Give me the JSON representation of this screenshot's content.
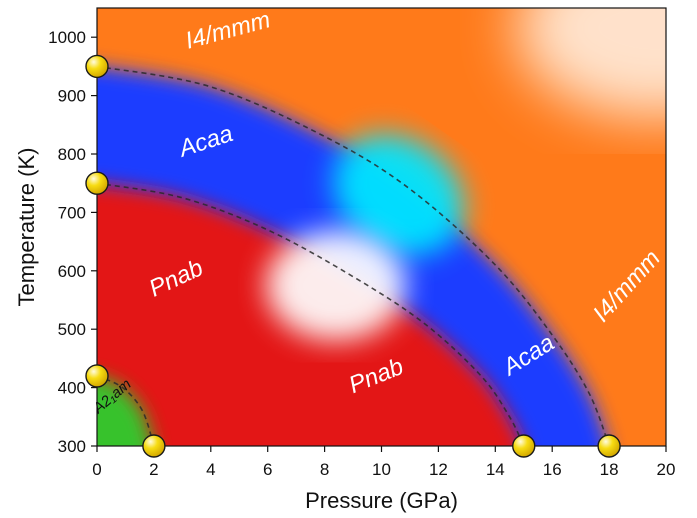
{
  "chart_data": {
    "type": "scatter",
    "title": "",
    "xlabel": "Pressure (GPa)",
    "ylabel": "Temperature (K)",
    "xlim": [
      0,
      20
    ],
    "ylim": [
      300,
      1050
    ],
    "xticks": [
      0,
      2,
      4,
      6,
      8,
      10,
      12,
      14,
      16,
      18,
      20
    ],
    "yticks": [
      300,
      400,
      500,
      600,
      700,
      800,
      900,
      1000
    ],
    "grid": false,
    "colors": {
      "I4/mmm": "#ff7a1a",
      "Acaa": "#1a3cff",
      "Acaa_center": "#00e5ff",
      "Pnab": "#e31515",
      "Pnab_center": "#ffffff",
      "A2_1am": "#2ecc2e",
      "point_fill": "#f5d60a",
      "point_stroke": "#1a1a1a"
    },
    "regions": [
      {
        "label": "I4/mmm",
        "x": 3.2,
        "y": 980,
        "rotate": -15,
        "size": 24
      },
      {
        "label": "Acaa",
        "x": 3.0,
        "y": 795,
        "rotate": -18,
        "size": 24
      },
      {
        "label": "Pnab",
        "x": 2.0,
        "y": 555,
        "rotate": -25,
        "size": 24
      },
      {
        "label": "Pnab",
        "x": 9.0,
        "y": 390,
        "rotate": -22,
        "size": 24
      },
      {
        "label": "Acaa",
        "x": 14.5,
        "y": 420,
        "rotate": -32,
        "size": 24
      },
      {
        "label": "I4/mmm",
        "x": 17.8,
        "y": 510,
        "rotate": -48,
        "size": 24
      },
      {
        "label": "A2₁am",
        "x": 0.05,
        "y": 355,
        "rotate": -40,
        "size": 15,
        "dark": true
      }
    ],
    "boundaries": [
      {
        "name": "A2_1am-Pnab",
        "points": [
          [
            0,
            420
          ],
          [
            0.9,
            400
          ],
          [
            1.6,
            360
          ],
          [
            2.0,
            300
          ]
        ]
      },
      {
        "name": "Pnab-Acaa",
        "points": [
          [
            0,
            750
          ],
          [
            3,
            725
          ],
          [
            6,
            670
          ],
          [
            9,
            590
          ],
          [
            11.5,
            510
          ],
          [
            13.5,
            420
          ],
          [
            14.5,
            350
          ],
          [
            15,
            300
          ]
        ]
      },
      {
        "name": "Acaa-I4/mmm",
        "points": [
          [
            0,
            950
          ],
          [
            4,
            915
          ],
          [
            8,
            830
          ],
          [
            11,
            740
          ],
          [
            14,
            610
          ],
          [
            16,
            490
          ],
          [
            17.3,
            390
          ],
          [
            18,
            300
          ]
        ]
      }
    ],
    "series": [
      {
        "values": [
          [
            0,
            950
          ],
          [
            0,
            750
          ],
          [
            0,
            420
          ],
          [
            2,
            300
          ],
          [
            15,
            300
          ],
          [
            18,
            300
          ]
        ]
      }
    ]
  }
}
